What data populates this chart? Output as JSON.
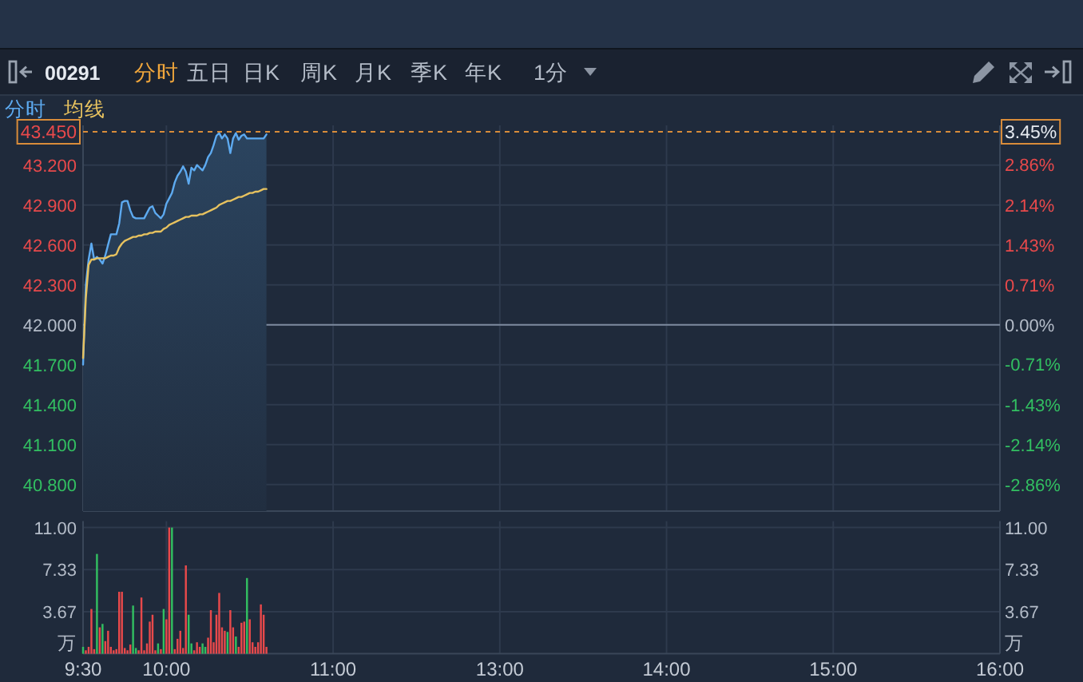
{
  "chart_data": [
    {
      "type": "other",
      "annotations": [
        "00291",
        "分时",
        "五日",
        "日K",
        "周K",
        "月K",
        "季K",
        "年K",
        "1分"
      ]
    },
    {
      "type": "area",
      "legend": "top left",
      "grid": true,
      "tick_labels": "y",
      "categories": [
        null,
        null,
        null,
        null,
        null,
        null,
        null,
        null,
        null,
        null,
        null,
        null,
        null,
        null,
        null,
        null,
        null,
        null,
        null,
        null,
        null,
        null,
        null,
        null,
        null,
        null,
        null,
        null,
        null,
        null,
        null,
        null,
        null,
        null,
        null,
        null,
        null,
        null,
        null,
        null,
        null,
        null,
        null,
        null,
        null,
        null,
        null,
        null,
        null,
        null,
        null,
        null,
        null,
        null,
        null,
        null,
        null,
        null,
        null,
        null,
        null,
        null,
        null,
        null,
        null,
        null,
        null,
        null,
        null,
        null,
        null,
        null,
        null,
        null,
        null,
        null,
        null,
        null,
        null,
        null,
        null,
        null,
        null,
        null,
        null,
        null,
        null,
        null,
        null,
        null,
        null,
        null,
        null,
        null,
        null,
        null,
        null,
        null,
        null,
        null,
        null,
        null,
        null,
        null,
        null,
        null,
        null,
        null,
        null,
        null,
        null,
        null,
        null,
        null,
        null,
        null,
        null,
        null,
        null,
        null,
        null,
        null,
        null,
        null,
        null,
        null,
        null,
        null,
        null,
        null,
        null,
        null,
        null,
        null,
        null,
        null,
        null,
        null,
        null,
        null,
        null,
        null,
        null,
        null,
        null,
        null,
        null,
        null,
        null,
        null,
        null,
        null,
        null,
        null,
        null,
        null,
        null,
        null,
        null,
        null,
        null,
        null,
        null,
        null,
        null,
        null,
        null,
        null,
        null,
        null,
        null,
        null,
        null,
        null,
        null,
        null,
        null,
        null,
        null,
        null,
        null,
        null,
        null,
        null,
        null,
        null,
        null,
        null,
        null,
        null,
        null,
        null,
        null,
        null,
        null,
        null,
        null,
        null,
        null,
        null,
        null,
        null,
        null,
        null,
        null,
        null,
        null,
        null,
        null,
        null,
        null,
        null,
        null,
        null,
        null,
        null,
        null,
        null,
        null,
        null,
        null,
        null,
        null,
        null,
        null,
        null,
        null,
        null,
        null,
        null,
        null,
        null,
        null,
        null,
        null,
        null,
        null,
        null,
        null,
        null,
        null,
        null,
        null,
        null,
        null,
        null,
        null,
        null,
        null,
        null,
        null,
        null,
        null,
        null,
        null,
        null,
        null,
        null,
        null,
        null,
        null,
        null,
        null,
        null,
        null,
        null,
        null,
        null,
        null,
        null,
        null,
        null,
        null,
        null,
        null,
        null,
        null,
        null,
        null,
        null,
        null,
        null,
        null,
        null,
        null,
        null,
        null,
        null,
        null,
        null,
        null,
        null,
        null,
        null,
        null,
        null,
        null,
        null,
        null,
        null,
        null,
        null,
        null,
        null,
        null,
        null,
        null,
        null,
        null,
        null,
        null,
        null,
        null,
        null,
        null,
        null,
        null,
        null,
        null,
        null,
        null,
        null,
        null,
        null,
        null,
        null,
        null,
        null,
        null,
        null,
        null
      ],
      "series": [
        {
          "name": "分时",
          "type": "area",
          "color": "#5daaf0",
          "values": [
            41.7,
            42.3,
            42.49,
            42.61,
            42.49,
            42.51,
            42.49,
            42.46,
            42.52,
            42.6,
            42.68,
            42.68,
            42.68,
            42.76,
            42.92,
            42.93,
            42.93,
            42.86,
            42.81,
            42.8,
            42.8,
            42.8,
            42.8,
            42.84,
            42.88,
            42.89,
            42.84,
            42.82,
            42.8,
            42.83,
            42.91,
            42.95,
            42.99,
            43.07,
            43.12,
            43.15,
            43.19,
            43.15,
            43.06,
            43.18,
            43.16,
            43.2,
            43.18,
            43.16,
            43.2,
            43.26,
            43.29,
            43.35,
            43.42,
            43.44,
            43.4,
            43.43,
            43.4,
            43.29,
            43.4,
            43.44,
            43.39,
            43.42,
            43.43,
            43.4,
            43.4,
            43.4,
            43.4,
            43.4,
            43.4,
            43.4,
            43.43,
            null,
            null,
            null,
            null,
            null,
            null,
            null,
            null,
            null,
            null,
            null,
            null,
            null,
            null,
            null,
            null,
            null,
            null,
            null,
            null,
            null,
            null,
            null,
            null,
            null,
            null,
            null,
            null,
            null,
            null,
            null,
            null,
            null,
            null,
            null,
            null,
            null,
            null,
            null,
            null,
            null,
            null,
            null,
            null,
            null,
            null,
            null,
            null,
            null,
            null,
            null,
            null,
            null,
            null,
            null,
            null,
            null,
            null,
            null,
            null,
            null,
            null,
            null,
            null,
            null,
            null,
            null,
            null,
            null,
            null,
            null,
            null,
            null,
            null,
            null,
            null,
            null,
            null,
            null,
            null,
            null,
            null,
            null,
            null,
            null,
            null,
            null,
            null,
            null,
            null,
            null,
            null,
            null,
            null,
            null,
            null,
            null,
            null,
            null,
            null,
            null,
            null,
            null,
            null,
            null,
            null,
            null,
            null,
            null,
            null,
            null,
            null,
            null,
            null,
            null,
            null,
            null,
            null,
            null,
            null,
            null,
            null,
            null,
            null,
            null,
            null,
            null,
            null,
            null,
            null,
            null,
            null,
            null,
            null,
            null,
            null,
            null,
            null,
            null,
            null,
            null,
            null,
            null,
            null,
            null,
            null,
            null,
            null,
            null,
            null,
            null,
            null,
            null,
            null,
            null,
            null,
            null,
            null,
            null,
            null,
            null,
            null,
            null,
            null,
            null,
            null,
            null,
            null,
            null,
            null,
            null,
            null,
            null,
            null,
            null,
            null,
            null,
            null,
            null,
            null,
            null,
            null,
            null,
            null,
            null,
            null,
            null,
            null,
            null,
            null,
            null,
            null,
            null,
            null,
            null,
            null,
            null,
            null,
            null,
            null,
            null,
            null,
            null,
            null,
            null,
            null,
            null,
            null,
            null,
            null,
            null,
            null,
            null,
            null,
            null,
            null,
            null,
            null,
            null,
            null,
            null,
            null,
            null,
            null,
            null,
            null,
            null,
            null,
            null,
            null,
            null,
            null,
            null,
            null,
            null,
            null,
            null,
            null,
            null,
            null,
            null,
            null,
            null,
            null,
            null,
            null,
            null,
            null,
            null,
            null,
            null,
            null,
            null,
            null,
            null,
            null,
            null,
            null,
            null,
            null,
            null,
            null,
            null,
            null
          ]
        },
        {
          "name": "均线",
          "type": "line",
          "color": "#e7c25f",
          "values": [
            41.75,
            42.2,
            42.45,
            42.49,
            42.49,
            42.5,
            42.5,
            42.5,
            42.5,
            42.51,
            42.52,
            42.52,
            42.53,
            42.58,
            42.61,
            42.63,
            42.64,
            42.65,
            42.66,
            42.66,
            42.67,
            42.67,
            42.68,
            42.68,
            42.69,
            42.69,
            42.7,
            42.7,
            42.7,
            42.72,
            42.73,
            42.75,
            42.76,
            42.77,
            42.78,
            42.79,
            42.8,
            42.81,
            42.81,
            42.82,
            42.82,
            42.82,
            42.83,
            42.83,
            42.84,
            42.85,
            42.86,
            42.87,
            42.88,
            42.9,
            42.91,
            42.92,
            42.93,
            42.93,
            42.94,
            42.95,
            42.96,
            42.96,
            42.97,
            42.98,
            42.99,
            42.99,
            43.0,
            43.0,
            43.01,
            43.02,
            43.02,
            null,
            null,
            null,
            null,
            null,
            null,
            null,
            null,
            null,
            null,
            null,
            null,
            null,
            null,
            null,
            null,
            null,
            null,
            null,
            null,
            null,
            null,
            null,
            null,
            null,
            null,
            null,
            null,
            null,
            null,
            null,
            null,
            null,
            null,
            null,
            null,
            null,
            null,
            null,
            null,
            null,
            null,
            null,
            null,
            null,
            null,
            null,
            null,
            null,
            null,
            null,
            null,
            null,
            null,
            null,
            null,
            null,
            null,
            null,
            null,
            null,
            null,
            null,
            null,
            null,
            null,
            null,
            null,
            null,
            null,
            null,
            null,
            null,
            null,
            null,
            null,
            null,
            null,
            null,
            null,
            null,
            null,
            null,
            null,
            null,
            null,
            null,
            null,
            null,
            null,
            null,
            null,
            null,
            null,
            null,
            null,
            null,
            null,
            null,
            null,
            null,
            null,
            null,
            null,
            null,
            null,
            null,
            null,
            null,
            null,
            null,
            null,
            null,
            null,
            null,
            null,
            null,
            null,
            null,
            null,
            null,
            null,
            null,
            null,
            null,
            null,
            null,
            null,
            null,
            null,
            null,
            null,
            null,
            null,
            null,
            null,
            null,
            null,
            null,
            null,
            null,
            null,
            null,
            null,
            null,
            null,
            null,
            null,
            null,
            null,
            null,
            null,
            null,
            null,
            null,
            null,
            null,
            null,
            null,
            null,
            null,
            null,
            null,
            null,
            null,
            null,
            null,
            null,
            null,
            null,
            null,
            null,
            null,
            null,
            null,
            null,
            null,
            null,
            null,
            null,
            null,
            null,
            null,
            null,
            null,
            null,
            null,
            null,
            null,
            null,
            null,
            null,
            null,
            null,
            null,
            null,
            null,
            null,
            null,
            null,
            null,
            null,
            null,
            null,
            null,
            null,
            null,
            null,
            null,
            null,
            null,
            null,
            null,
            null,
            null,
            null,
            null,
            null,
            null,
            null,
            null,
            null,
            null,
            null,
            null,
            null,
            null,
            null,
            null,
            null,
            null,
            null,
            null,
            null,
            null,
            null,
            null,
            null,
            null,
            null,
            null,
            null,
            null,
            null,
            null,
            null,
            null,
            null,
            null,
            null,
            null,
            null,
            null,
            null,
            null,
            null,
            null,
            null,
            null,
            null,
            null,
            null,
            null,
            null
          ]
        }
      ],
      "ylim": [
        40.6,
        43.45
      ],
      "yticks": [
        {
          "value": 43.2,
          "label": "43.200"
        },
        {
          "value": 42.9,
          "label": "42.900"
        },
        {
          "value": 42.6,
          "label": "42.600"
        },
        {
          "value": 42.3,
          "label": "42.300"
        },
        {
          "value": 42,
          "label": "42.000"
        },
        {
          "value": 41.7,
          "label": "41.700"
        },
        {
          "value": 41.4,
          "label": "41.400"
        },
        {
          "value": 41.1,
          "label": "41.100"
        },
        {
          "value": 40.8,
          "label": "40.800"
        }
      ],
      "y2lim": [
        -3.33,
        3.45
      ],
      "y2ticks": [
        {
          "value": 3.45,
          "label": "3.45%"
        },
        {
          "value": 2.86,
          "label": "2.86%"
        },
        {
          "value": 2.14,
          "label": "2.14%"
        },
        {
          "value": 1.43,
          "label": "1.43%"
        },
        {
          "value": 0.71,
          "label": "0.71%"
        },
        {
          "value": 0,
          "label": "0.00%"
        },
        {
          "value": -0.71,
          "label": "-0.71%"
        },
        {
          "value": -1.43,
          "label": "-1.43%"
        },
        {
          "value": -2.14,
          "label": "-2.14%"
        },
        {
          "value": -2.86,
          "label": "-2.86%"
        }
      ],
      "ref_lines": [
        {
          "axis": "y",
          "value": 42,
          "color": "#7d8a9e"
        },
        {
          "axis": "y",
          "value": 43.45,
          "label": "43.450",
          "color": "#d98c3a",
          "line_style": "dashed"
        }
      ]
    },
    {
      "type": "bar",
      "grid": true,
      "ylabel": "万",
      "y2label": "万",
      "categories": [
        "9:30",
        null,
        null,
        null,
        null,
        null,
        null,
        null,
        null,
        null,
        null,
        null,
        null,
        null,
        null,
        null,
        null,
        null,
        null,
        null,
        null,
        null,
        null,
        null,
        null,
        null,
        null,
        null,
        null,
        null,
        "10:00",
        null,
        null,
        null,
        null,
        null,
        null,
        null,
        null,
        null,
        null,
        null,
        null,
        null,
        null,
        null,
        null,
        null,
        null,
        null,
        null,
        null,
        null,
        null,
        null,
        null,
        null,
        null,
        null,
        null,
        null,
        null,
        null,
        null,
        null,
        null,
        null,
        null,
        null,
        null,
        null,
        null,
        null,
        null,
        null,
        null,
        null,
        null,
        null,
        null,
        null,
        null,
        null,
        null,
        null,
        null,
        null,
        null,
        null,
        null,
        "11:00",
        null,
        null,
        null,
        null,
        null,
        null,
        null,
        null,
        null,
        null,
        null,
        null,
        null,
        null,
        null,
        null,
        null,
        null,
        null,
        null,
        null,
        null,
        null,
        null,
        null,
        null,
        null,
        null,
        null,
        null,
        null,
        null,
        null,
        null,
        null,
        null,
        null,
        null,
        null,
        null,
        null,
        null,
        null,
        null,
        null,
        null,
        null,
        null,
        null,
        null,
        null,
        null,
        null,
        null,
        null,
        null,
        null,
        null,
        null,
        "13:00",
        null,
        null,
        null,
        null,
        null,
        null,
        null,
        null,
        null,
        null,
        null,
        null,
        null,
        null,
        null,
        null,
        null,
        null,
        null,
        null,
        null,
        null,
        null,
        null,
        null,
        null,
        null,
        null,
        null,
        null,
        null,
        null,
        null,
        null,
        null,
        null,
        null,
        null,
        null,
        null,
        null,
        null,
        null,
        null,
        null,
        null,
        null,
        null,
        null,
        null,
        null,
        null,
        null,
        null,
        null,
        null,
        null,
        null,
        null,
        "14:00",
        null,
        null,
        null,
        null,
        null,
        null,
        null,
        null,
        null,
        null,
        null,
        null,
        null,
        null,
        null,
        null,
        null,
        null,
        null,
        null,
        null,
        null,
        null,
        null,
        null,
        null,
        null,
        null,
        null,
        null,
        null,
        null,
        null,
        null,
        null,
        null,
        null,
        null,
        null,
        null,
        null,
        null,
        null,
        null,
        null,
        null,
        null,
        null,
        null,
        null,
        null,
        null,
        null,
        null,
        null,
        null,
        null,
        null,
        null,
        "15:00",
        null,
        null,
        null,
        null,
        null,
        null,
        null,
        null,
        null,
        null,
        null,
        null,
        null,
        null,
        null,
        null,
        null,
        null,
        null,
        null,
        null,
        null,
        null,
        null,
        null,
        null,
        null,
        null,
        null,
        null,
        null,
        null,
        null,
        null,
        null,
        null,
        null,
        null,
        null,
        null,
        null,
        null,
        null,
        null,
        null,
        null,
        null,
        null,
        null,
        null,
        null,
        null,
        null,
        null,
        null,
        null,
        null,
        null,
        null,
        "16:00"
      ],
      "values": [
        0.6,
        0.3,
        0.6,
        3.9,
        0.4,
        8.7,
        2.3,
        2.6,
        1.1,
        2.0,
        0.6,
        0.3,
        0.4,
        5.4,
        5.4,
        0.5,
        0.3,
        0.8,
        4.2,
        0.5,
        0.3,
        4.9,
        0.3,
        0.9,
        2.8,
        3.4,
        0.3,
        0.9,
        0.4,
        3.9,
        3.0,
        11.0,
        11.0,
        0.4,
        1.3,
        2.0,
        0.5,
        7.7,
        3.4,
        0.9,
        0.3,
        1.0,
        0.6,
        0.9,
        0.6,
        1.4,
        3.8,
        1.0,
        3.4,
        5.3,
        2.3,
        2.0,
        1.9,
        3.8,
        2.3,
        1.5,
        0.6,
        2.7,
        2.8,
        6.6,
        3.0,
        1.0,
        0.6,
        1.0,
        4.3,
        3.4,
        0.6,
        null,
        null,
        null,
        null,
        null,
        null,
        null,
        null,
        null,
        null,
        null,
        null,
        null,
        null,
        null,
        null,
        null,
        null,
        null,
        null,
        null,
        null,
        null,
        null,
        null,
        null,
        null,
        null,
        null,
        null,
        null,
        null,
        null,
        null,
        null,
        null,
        null,
        null,
        null,
        null,
        null,
        null,
        null,
        null,
        null,
        null,
        null,
        null,
        null,
        null,
        null,
        null,
        null,
        null,
        null,
        null,
        null,
        null,
        null,
        null,
        null,
        null,
        null,
        null,
        null,
        null,
        null,
        null,
        null,
        null,
        null,
        null,
        null,
        null,
        null,
        null,
        null,
        null,
        null,
        null,
        null,
        null,
        null,
        null,
        null,
        null,
        null,
        null,
        null,
        null,
        null,
        null,
        null,
        null,
        null,
        null,
        null,
        null,
        null,
        null,
        null,
        null,
        null,
        null,
        null,
        null,
        null,
        null,
        null,
        null,
        null,
        null,
        null,
        null,
        null,
        null,
        null,
        null,
        null,
        null,
        null,
        null,
        null,
        null,
        null,
        null,
        null,
        null,
        null,
        null,
        null,
        null,
        null,
        null,
        null,
        null,
        null,
        null,
        null,
        null,
        null,
        null,
        null,
        null,
        null,
        null,
        null,
        null,
        null,
        null,
        null,
        null,
        null,
        null,
        null,
        null,
        null,
        null,
        null,
        null,
        null,
        null,
        null,
        null,
        null,
        null,
        null,
        null,
        null,
        null,
        null,
        null,
        null,
        null,
        null,
        null,
        null,
        null,
        null,
        null,
        null,
        null,
        null,
        null,
        null,
        null,
        null,
        null,
        null,
        null,
        null,
        null,
        null,
        null,
        null,
        null,
        null,
        null,
        null,
        null,
        null,
        null,
        null,
        null,
        null,
        null,
        null,
        null,
        null,
        null,
        null,
        null,
        null,
        null,
        null,
        null,
        null,
        null,
        null,
        null,
        null,
        null,
        null,
        null,
        null,
        null,
        null,
        null,
        null,
        null,
        null,
        null,
        null,
        null,
        null,
        null,
        null,
        null,
        null,
        null,
        null,
        null,
        null,
        null,
        null,
        null,
        null,
        null,
        null,
        null,
        null,
        null,
        null,
        null,
        null,
        null,
        null,
        null,
        null,
        null,
        null,
        null,
        null,
        null
      ],
      "colors": [
        "#32bf61",
        "#e8494b",
        "#e8494b",
        "#e8494b",
        "#e8494b",
        "#32bf61",
        "#e8494b",
        "#32bf61",
        "#e8494b",
        "#e8494b",
        "#e8494b",
        "#e8494b",
        "#e8494b",
        "#e8494b",
        "#e8494b",
        "#e8494b",
        "#e8494b",
        "#e8494b",
        "#32bf61",
        "#32bf61",
        "#e8494b",
        "#e8494b",
        "#e8494b",
        "#e8494b",
        "#e8494b",
        "#e8494b",
        "#e8494b",
        "#32bf61",
        "#e8494b",
        "#32bf61",
        "#e8494b",
        "#e8494b",
        "#32bf61",
        "#e8494b",
        "#e8494b",
        "#e8494b",
        "#e8494b",
        "#e8494b",
        "#32bf61",
        "#32bf61",
        "#e8494b",
        "#e8494b",
        "#e8494b",
        "#32bf61",
        "#32bf61",
        "#e8494b",
        "#e8494b",
        "#e8494b",
        "#e8494b",
        "#e8494b",
        "#e8494b",
        "#e8494b",
        "#32bf61",
        "#e8494b",
        "#e8494b",
        "#32bf61",
        "#e8494b",
        "#e8494b",
        "#e8494b",
        "#32bf61",
        "#e8494b",
        "#e8494b",
        "#e8494b",
        "#e8494b",
        "#e8494b",
        "#e8494b",
        "#e8494b",
        null,
        null,
        null,
        null,
        null,
        null,
        null,
        null,
        null,
        null,
        null,
        null,
        null,
        null,
        null,
        null,
        null,
        null,
        null,
        null,
        null,
        null,
        null,
        null,
        null,
        null,
        null,
        null,
        null,
        null,
        null,
        null,
        null,
        null,
        null,
        null,
        null,
        null,
        null,
        null,
        null,
        null,
        null,
        null,
        null,
        null,
        null,
        null,
        null,
        null,
        null,
        null,
        null,
        null,
        null,
        null,
        null,
        null,
        null,
        null,
        null,
        null,
        null,
        null,
        null,
        null,
        null,
        null,
        null,
        null,
        null,
        null,
        null,
        null,
        null,
        null,
        null,
        null,
        null,
        null,
        null,
        null,
        null,
        null,
        null,
        null,
        null,
        null,
        null,
        null,
        null,
        null,
        null,
        null,
        null,
        null,
        null,
        null,
        null,
        null,
        null,
        null,
        null,
        null,
        null,
        null,
        null,
        null,
        null,
        null,
        null,
        null,
        null,
        null,
        null,
        null,
        null,
        null,
        null,
        null,
        null,
        null,
        null,
        null,
        null,
        null,
        null,
        null,
        null,
        null,
        null,
        null,
        null,
        null,
        null,
        null,
        null,
        null,
        null,
        null,
        null,
        null,
        null,
        null,
        null,
        null,
        null,
        null,
        null,
        null,
        null,
        null,
        null,
        null,
        null,
        null,
        null,
        null,
        null,
        null,
        null,
        null,
        null,
        null,
        null,
        null,
        null,
        null,
        null,
        null,
        null,
        null,
        null,
        null,
        null,
        null,
        null,
        null,
        null,
        null,
        null,
        null,
        null,
        null,
        null,
        null,
        null,
        null,
        null,
        null,
        null,
        null,
        null,
        null,
        null,
        null,
        null,
        null,
        null,
        null,
        null,
        null,
        null,
        null,
        null,
        null,
        null,
        null,
        null,
        null,
        null,
        null,
        null,
        null,
        null,
        null,
        null,
        null,
        null,
        null,
        null,
        null,
        null,
        null,
        null,
        null,
        null,
        null,
        null,
        null,
        null,
        null,
        null,
        null,
        null,
        null,
        null,
        null,
        null,
        null,
        null,
        null,
        null,
        null,
        null,
        null,
        null,
        null,
        null,
        null,
        null,
        null,
        null,
        null,
        null,
        null,
        null,
        null,
        null,
        null,
        null,
        null,
        null,
        null
      ],
      "ylim": [
        0,
        11
      ],
      "yticks": [
        3.67,
        7.33,
        {
          "value": 11,
          "label": "11.00"
        }
      ],
      "y2lim": [
        0,
        11
      ],
      "y2ticks": [
        3.67,
        7.33,
        {
          "value": 11,
          "label": "11.00"
        }
      ]
    }
  ]
}
